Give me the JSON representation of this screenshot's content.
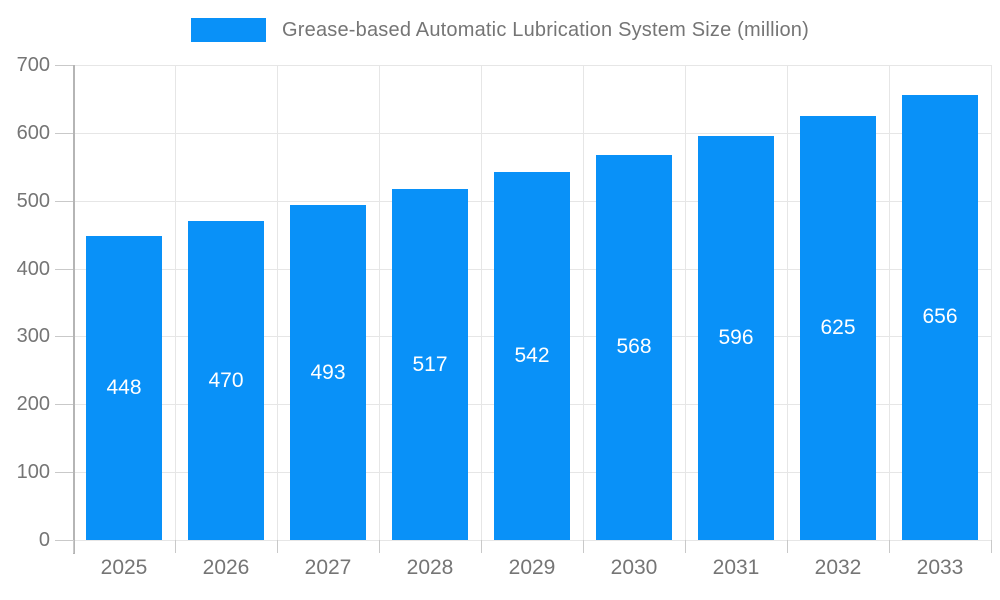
{
  "legend": {
    "label": "Grease-based Automatic Lubrication System Size (million)"
  },
  "chart_data": {
    "type": "bar",
    "title": "Grease-based Automatic Lubrication System Size (million)",
    "categories": [
      "2025",
      "2026",
      "2027",
      "2028",
      "2029",
      "2030",
      "2031",
      "2032",
      "2033"
    ],
    "values": [
      448,
      470,
      493,
      517,
      542,
      568,
      596,
      625,
      656
    ],
    "xlabel": "",
    "ylabel": "",
    "ylim": [
      0,
      700
    ],
    "ytick_step": 100,
    "yticks": [
      0,
      100,
      200,
      300,
      400,
      500,
      600,
      700
    ],
    "grid": true,
    "legend_position": "top",
    "bar_color": "#0991f8",
    "bar_label_color": "#ffffff",
    "axis_color": "#b5b5b5",
    "grid_color": "#e6e6e6",
    "tick_text_color": "#757575"
  }
}
